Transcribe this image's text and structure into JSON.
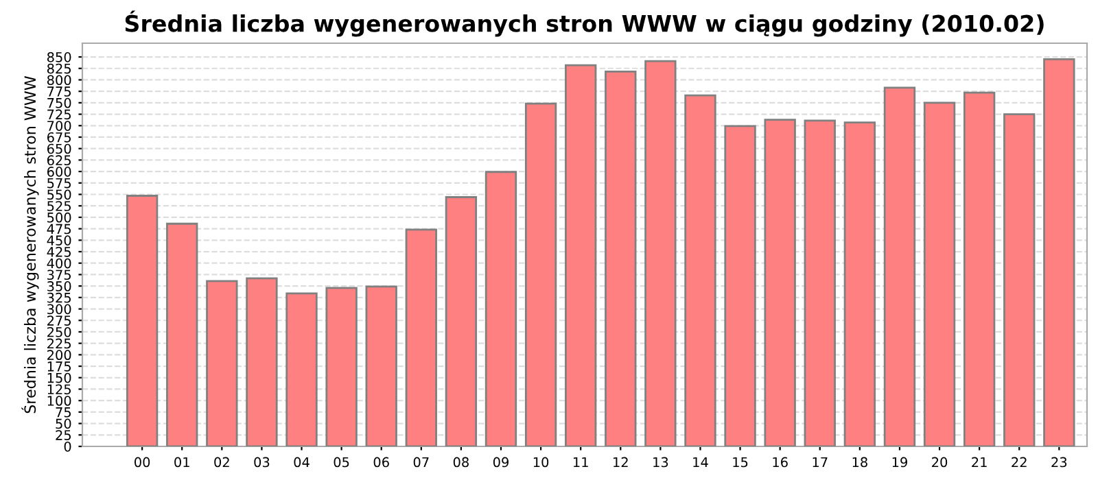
{
  "chart_data": {
    "type": "bar",
    "title": "Średnia liczba wygenerowanych stron WWW w ciągu godziny (2010.02)",
    "ylabel": "Średnia liczba wygenerowanych stron WWW",
    "categories": [
      "00",
      "01",
      "02",
      "03",
      "04",
      "05",
      "06",
      "07",
      "08",
      "09",
      "10",
      "11",
      "12",
      "13",
      "14",
      "15",
      "16",
      "17",
      "18",
      "19",
      "20",
      "21",
      "22",
      "23"
    ],
    "values": [
      547,
      486,
      361,
      367,
      334,
      346,
      349,
      473,
      544,
      599,
      748,
      832,
      818,
      841,
      766,
      699,
      713,
      711,
      707,
      783,
      750,
      772,
      725,
      845
    ],
    "color": "#ff8080",
    "ylim": [
      0,
      880
    ],
    "yticks": [
      0,
      25,
      50,
      75,
      100,
      125,
      150,
      175,
      200,
      225,
      250,
      275,
      300,
      325,
      350,
      375,
      400,
      425,
      450,
      475,
      500,
      525,
      550,
      575,
      600,
      625,
      650,
      675,
      700,
      725,
      750,
      775,
      800,
      825,
      850
    ],
    "grid": "y"
  }
}
